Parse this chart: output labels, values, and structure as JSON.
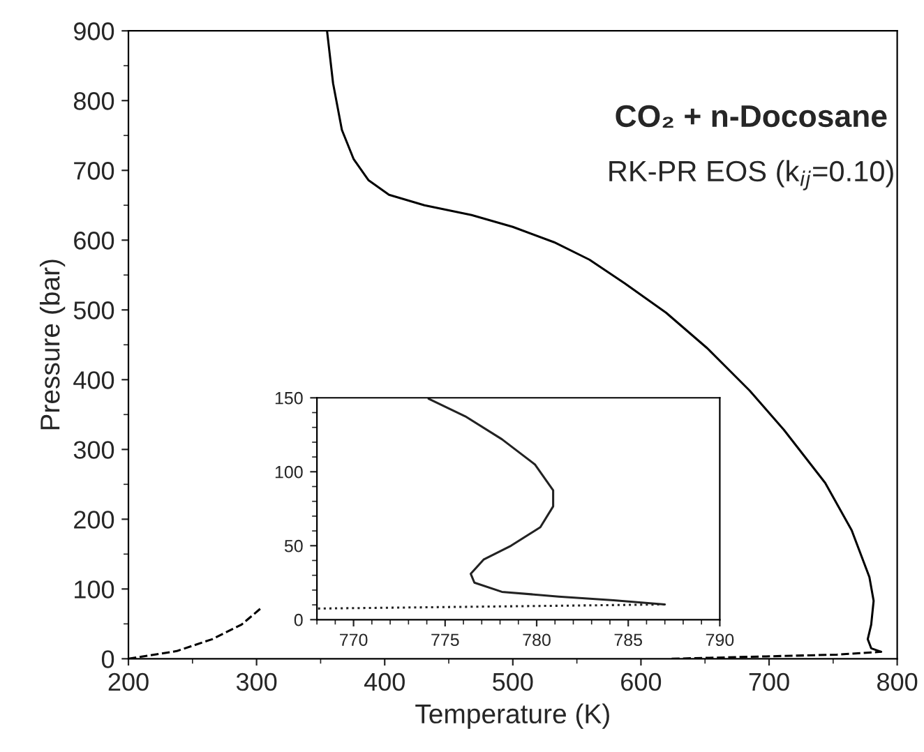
{
  "chart_data": [
    {
      "type": "line",
      "title": "CO₂ + n-Docosane",
      "subtitle": "RK-PR EOS (k$_{ij}$=0.10)",
      "xlabel": "Temperature (K)",
      "ylabel": "Pressure (bar)",
      "xlim": [
        200,
        800
      ],
      "ylim": [
        0,
        900
      ],
      "xticks": [
        200,
        300,
        400,
        500,
        600,
        700,
        800
      ],
      "yticks": [
        0,
        100,
        200,
        300,
        400,
        500,
        600,
        700,
        800,
        900
      ],
      "grid": false,
      "legend": false,
      "series": [
        {
          "color": "#000000",
          "line_style": "solid",
          "x": [
            355,
            359.7,
            366.6,
            375.8,
            387.3,
            403.4,
            431,
            467.8,
            500,
            532.2,
            559.8,
            587.4,
            619.6,
            651.8,
            685,
            711.6,
            743.8,
            764.5,
            778.3,
            781.6,
            779.7,
            777,
            779.7,
            787.5
          ],
          "values": [
            900,
            825,
            758,
            716,
            686,
            665,
            650,
            636,
            619,
            597,
            572,
            538,
            496,
            445,
            384,
            328,
            252,
            184,
            117,
            83,
            49,
            28,
            15,
            10
          ]
        },
        {
          "color": "#000000",
          "line_style": "dashed",
          "x": [
            624,
            697.8,
            753,
            787.5
          ],
          "values": [
            0,
            3.4,
            5.9,
            10
          ]
        },
        {
          "color": "#000000",
          "line_style": "dashed",
          "x": [
            200,
            237.7,
            265.3,
            288.3,
            304.4
          ],
          "values": [
            0,
            11,
            28,
            49,
            74
          ]
        }
      ]
    },
    {
      "type": "line",
      "xlim": [
        768,
        790
      ],
      "ylim": [
        0,
        150
      ],
      "xticks": [
        770,
        775,
        780,
        785,
        790
      ],
      "yticks": [
        0,
        50,
        100,
        150
      ],
      "grid": false,
      "legend": false,
      "series": [
        {
          "color": "#222222",
          "line_style": "solid",
          "x": [
            774.1,
            776.1,
            778.1,
            779.9,
            780.9,
            780.9,
            780.2,
            778.6,
            777.1,
            776.4,
            776.6,
            778.1,
            781.2,
            784.2,
            787
          ],
          "values": [
            149.4,
            137.5,
            122,
            105,
            87.5,
            76.6,
            62.5,
            50,
            40.6,
            31,
            25,
            18.8,
            15.6,
            13.1,
            10.3
          ]
        },
        {
          "color": "#222222",
          "line_style": "dotted",
          "x": [
            787,
            781.2,
            768
          ],
          "values": [
            10.3,
            9.4,
            7.5
          ]
        }
      ]
    }
  ]
}
